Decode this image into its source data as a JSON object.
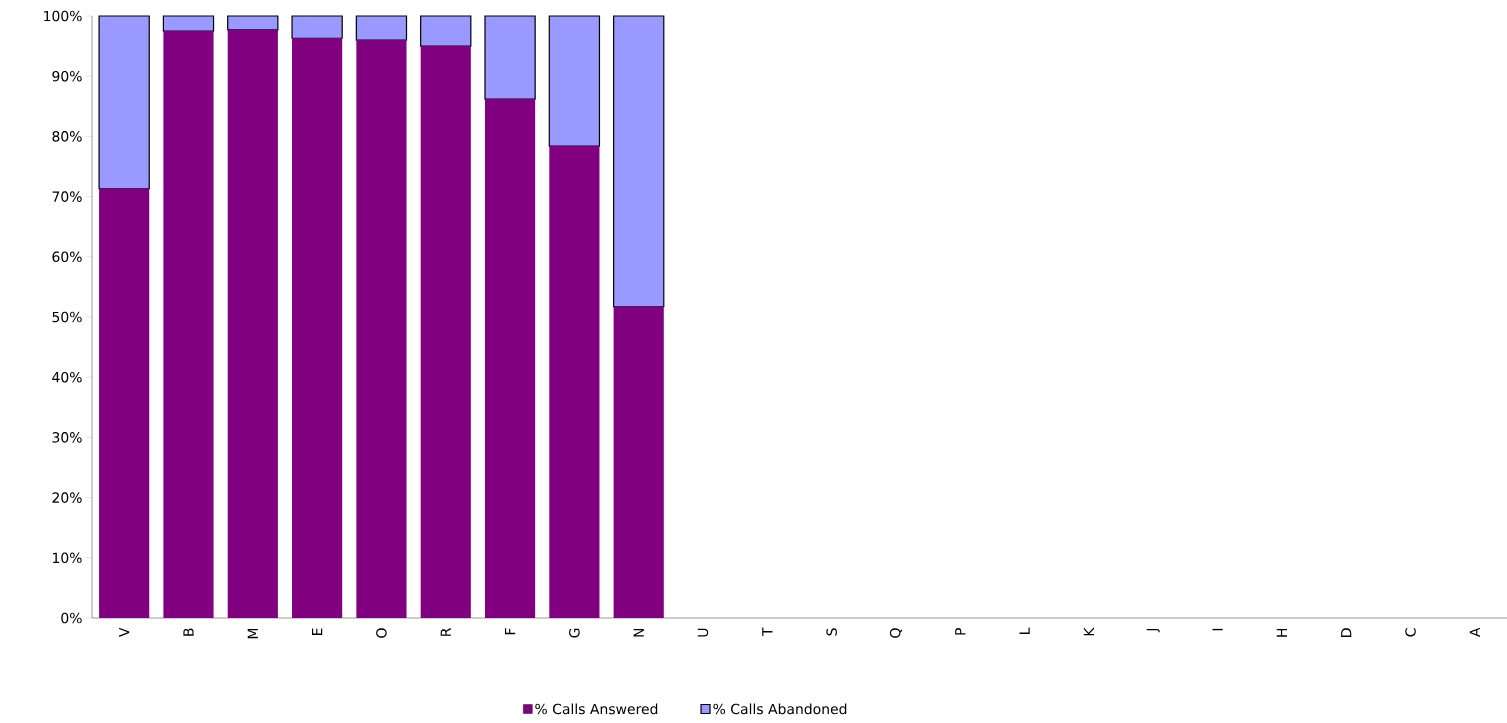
{
  "chart_data": {
    "type": "bar",
    "stacked": true,
    "categories": [
      "V",
      "B",
      "M",
      "E",
      "O",
      "R",
      "F",
      "G",
      "N",
      "U",
      "T",
      "S",
      "Q",
      "P",
      "L",
      "K",
      "J",
      "I",
      "H",
      "D",
      "C",
      "A"
    ],
    "series": [
      {
        "name": "% Calls Answered",
        "color": "#800080",
        "values": [
          71.3,
          97.5,
          97.7,
          96.3,
          96.0,
          95.0,
          86.2,
          78.4,
          51.7,
          null,
          null,
          null,
          null,
          null,
          null,
          null,
          null,
          null,
          null,
          null,
          null,
          null
        ]
      },
      {
        "name": "% Calls Abandoned",
        "color": "#9999ff",
        "values": [
          28.7,
          2.5,
          2.3,
          3.7,
          4.0,
          5.0,
          13.8,
          21.6,
          48.3,
          null,
          null,
          null,
          null,
          null,
          null,
          null,
          null,
          null,
          null,
          null,
          null,
          null
        ]
      }
    ],
    "ylim": [
      0,
      100
    ],
    "yticks": [
      {
        "value": 0,
        "label": "0%"
      },
      {
        "value": 10,
        "label": "10%"
      },
      {
        "value": 20,
        "label": "20%"
      },
      {
        "value": 30,
        "label": "30%"
      },
      {
        "value": 40,
        "label": "40%"
      },
      {
        "value": 50,
        "label": "50%"
      },
      {
        "value": 60,
        "label": "60%"
      },
      {
        "value": 70,
        "label": "70%"
      },
      {
        "value": 80,
        "label": "80%"
      },
      {
        "value": 90,
        "label": "90%"
      },
      {
        "value": 100,
        "label": "100%"
      }
    ],
    "legend": "bottom",
    "grid": false
  }
}
